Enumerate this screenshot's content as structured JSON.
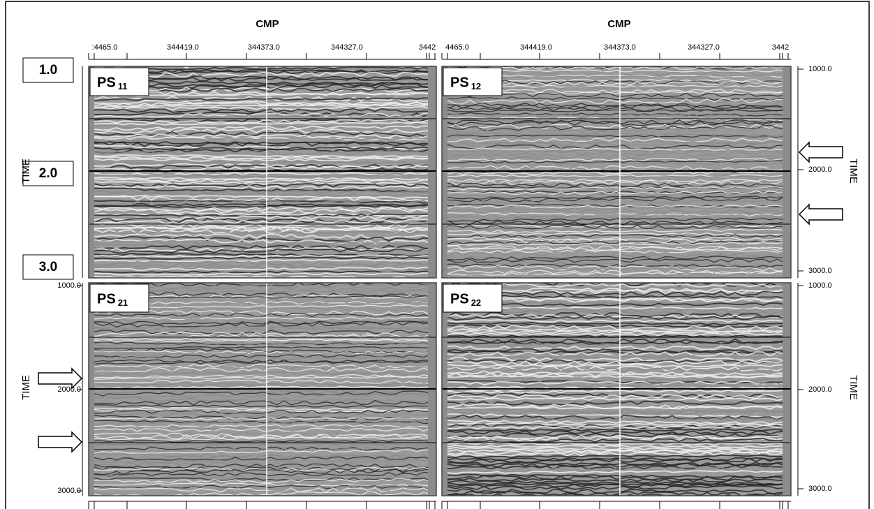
{
  "top_axes": [
    {
      "label": "CMP",
      "ticks": [
        ":4465.0",
        "344419.0",
        "344373.0",
        "344327.0",
        "3442"
      ]
    },
    {
      "label": "CMP",
      "ticks": [
        "4465.0",
        "344419.0",
        "344373.0",
        "344327.0",
        "3442"
      ]
    }
  ],
  "time_boxes": [
    "1.0",
    "2.0",
    "3.0"
  ],
  "side_axes": [
    {
      "label": "TIME",
      "ticks": []
    },
    {
      "label": "TIME",
      "ticks": [
        "1000.0",
        "2000.0",
        "3000.0"
      ]
    },
    {
      "label": "TIME",
      "ticks": [
        "1000.0",
        "2000.0",
        "3000.0"
      ]
    },
    {
      "label": "TIME",
      "ticks": [
        "1000.0",
        "2000.0",
        "3000.0"
      ]
    }
  ],
  "panels": [
    {
      "label": "PS",
      "subscript": "11"
    },
    {
      "label": "PS",
      "subscript": "12"
    },
    {
      "label": "PS",
      "subscript": "21"
    },
    {
      "label": "PS",
      "subscript": "22"
    }
  ]
}
